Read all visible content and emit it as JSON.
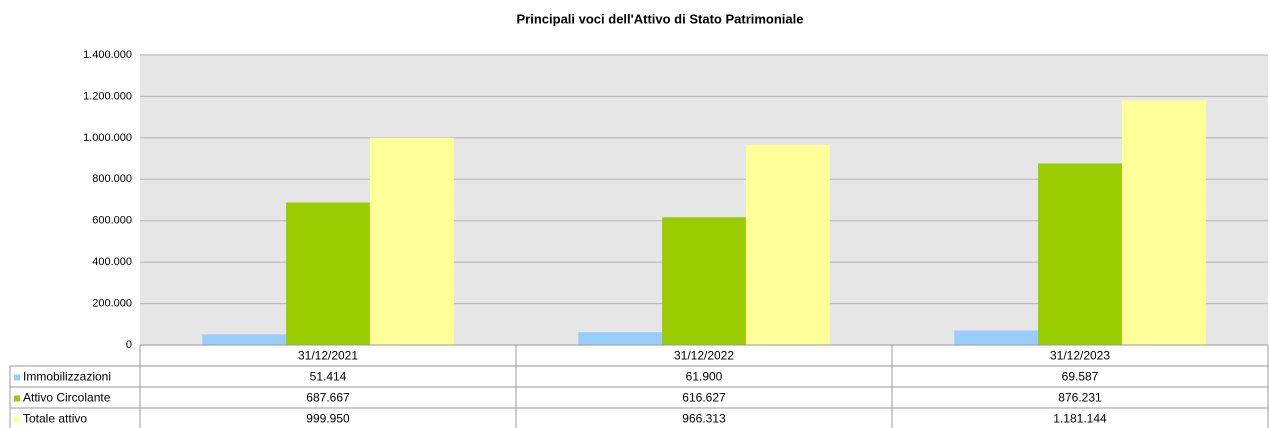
{
  "chart_data": {
    "type": "bar",
    "title": "Principali voci dell'Attivo di Stato Patrimoniale",
    "categories": [
      "31/12/2021",
      "31/12/2022",
      "31/12/2023"
    ],
    "series": [
      {
        "name": "Immobilizzazioni",
        "color": "#99ccff",
        "values": [
          51414,
          61900,
          69587
        ],
        "value_labels": [
          "51.414",
          "61.900",
          "69.587"
        ]
      },
      {
        "name": "Attivo Circolante",
        "color": "#99cc00",
        "values": [
          687667,
          616627,
          876231
        ],
        "value_labels": [
          "687.667",
          "616.627",
          "876.231"
        ]
      },
      {
        "name": "Totale attivo",
        "color": "#ffff99",
        "values": [
          999950,
          966313,
          1181144
        ],
        "value_labels": [
          "999.950",
          "966.313",
          "1.181.144"
        ]
      }
    ],
    "ylim": [
      0,
      1400000
    ],
    "yticks": [
      0,
      {
        "value": 200000,
        "label": "200.000"
      },
      {
        "value": 400000,
        "label": "400.000"
      },
      {
        "value": 600000,
        "label": "600.000"
      },
      {
        "value": 800000,
        "label": "800.000"
      },
      {
        "value": 1000000,
        "label": "1.000.000"
      },
      {
        "value": 1200000,
        "label": "1.200.000"
      },
      {
        "value": 1400000,
        "label": "1.400.000"
      }
    ],
    "grid": true
  }
}
